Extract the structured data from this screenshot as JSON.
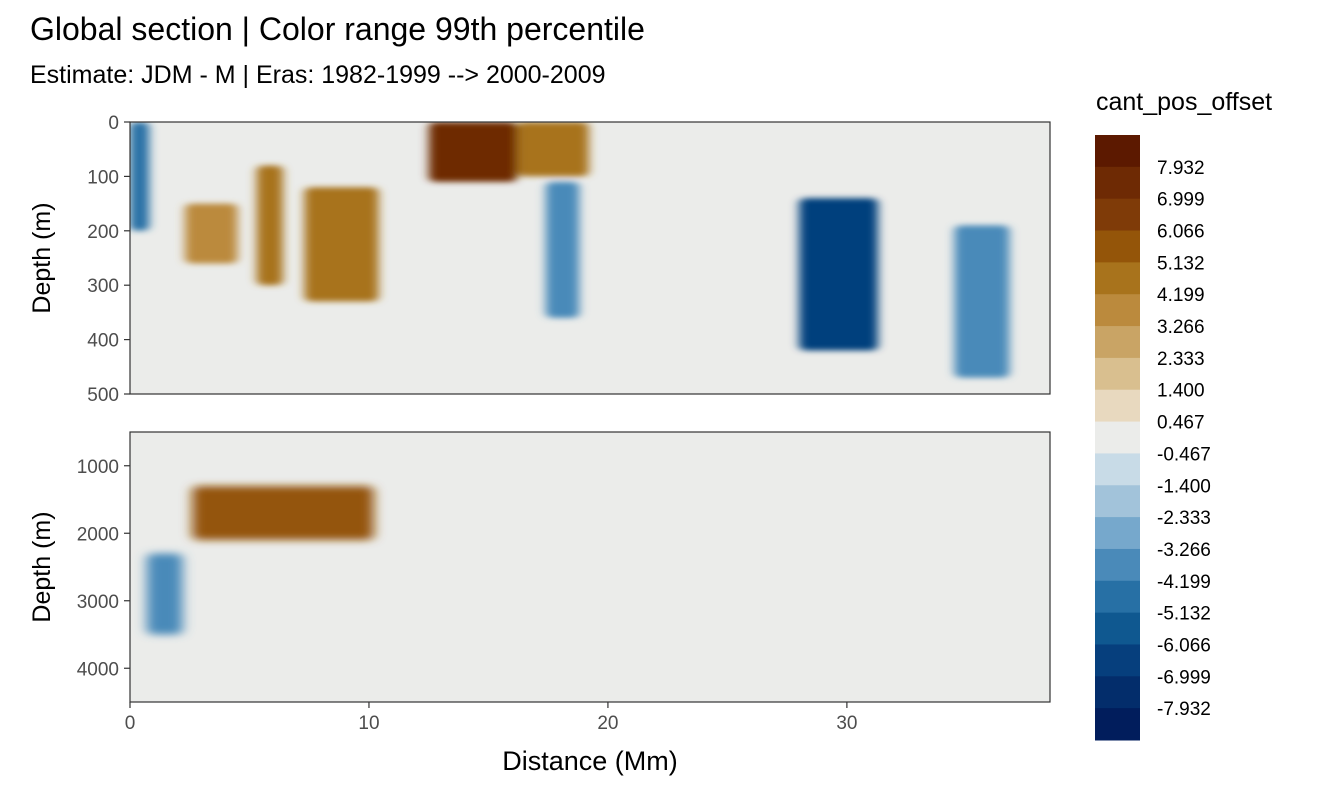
{
  "title": "Global section | Color range 99th percentile",
  "subtitle": "Estimate: JDM - M | Eras: 1982-1999 --> 2000-2009",
  "chart_data": {
    "type": "heatmap",
    "xlabel": "Distance (Mm)",
    "ylabel": "Depth (m)",
    "xlim": [
      0,
      38.5
    ],
    "x_ticks": [
      "0",
      "10",
      "20",
      "30"
    ],
    "panels": [
      {
        "name": "upper",
        "ylim": [
          0,
          500
        ],
        "y_ticks": [
          "0",
          "100",
          "200",
          "300",
          "400",
          "500"
        ]
      },
      {
        "name": "lower",
        "ylim": [
          500,
          4500
        ],
        "y_ticks": [
          "1000",
          "2000",
          "3000",
          "4000"
        ]
      }
    ],
    "legend": {
      "title": "cant_pos_offset",
      "placement": "right",
      "labels": [
        "7.932",
        "6.999",
        "6.066",
        "5.132",
        "4.199",
        "3.266",
        "2.333",
        "1.400",
        "0.467",
        "-0.467",
        "-1.400",
        "-2.333",
        "-3.266",
        "-4.199",
        "-5.132",
        "-6.066",
        "-6.999",
        "-7.932"
      ],
      "colors": [
        "#5c1900",
        "#6e2a04",
        "#7f3b08",
        "#945509",
        "#a8731c",
        "#bb8a3d",
        "#c9a465",
        "#d9bf8f",
        "#e8d9bf",
        "#ebecea",
        "#c8dbe7",
        "#a2c3da",
        "#76a8cc",
        "#4a8ab9",
        "#2770a5",
        "#0f5890",
        "#063f7d",
        "#032d6b",
        "#011d5c"
      ]
    },
    "features": [
      {
        "panel": "upper",
        "x": [
          0,
          0.8
        ],
        "y": [
          0,
          200
        ],
        "value": -4.5
      },
      {
        "panel": "upper",
        "x": [
          2.3,
          4.5
        ],
        "y": [
          150,
          260
        ],
        "value": 3.5
      },
      {
        "panel": "upper",
        "x": [
          5.3,
          6.4
        ],
        "y": [
          80,
          300
        ],
        "value": 4.2
      },
      {
        "panel": "upper",
        "x": [
          7.3,
          10.4
        ],
        "y": [
          120,
          330
        ],
        "value": 5.0
      },
      {
        "panel": "upper",
        "x": [
          12.5,
          16.2
        ],
        "y": [
          0,
          110
        ],
        "value": 7.2
      },
      {
        "panel": "upper",
        "x": [
          16.2,
          19.2
        ],
        "y": [
          0,
          100
        ],
        "value": 4.8
      },
      {
        "panel": "upper",
        "x": [
          17.4,
          18.8
        ],
        "y": [
          110,
          360
        ],
        "value": -3.8
      },
      {
        "panel": "upper",
        "x": [
          28.0,
          31.3
        ],
        "y": [
          140,
          420
        ],
        "value": -6.5
      },
      {
        "panel": "upper",
        "x": [
          34.5,
          36.8
        ],
        "y": [
          190,
          470
        ],
        "value": -3.8
      },
      {
        "panel": "lower",
        "x": [
          2.6,
          10.2
        ],
        "y": [
          1300,
          2100
        ],
        "value": 6.0
      },
      {
        "panel": "lower",
        "x": [
          0.7,
          2.2
        ],
        "y": [
          2300,
          3500
        ],
        "value": -4.0
      }
    ]
  }
}
